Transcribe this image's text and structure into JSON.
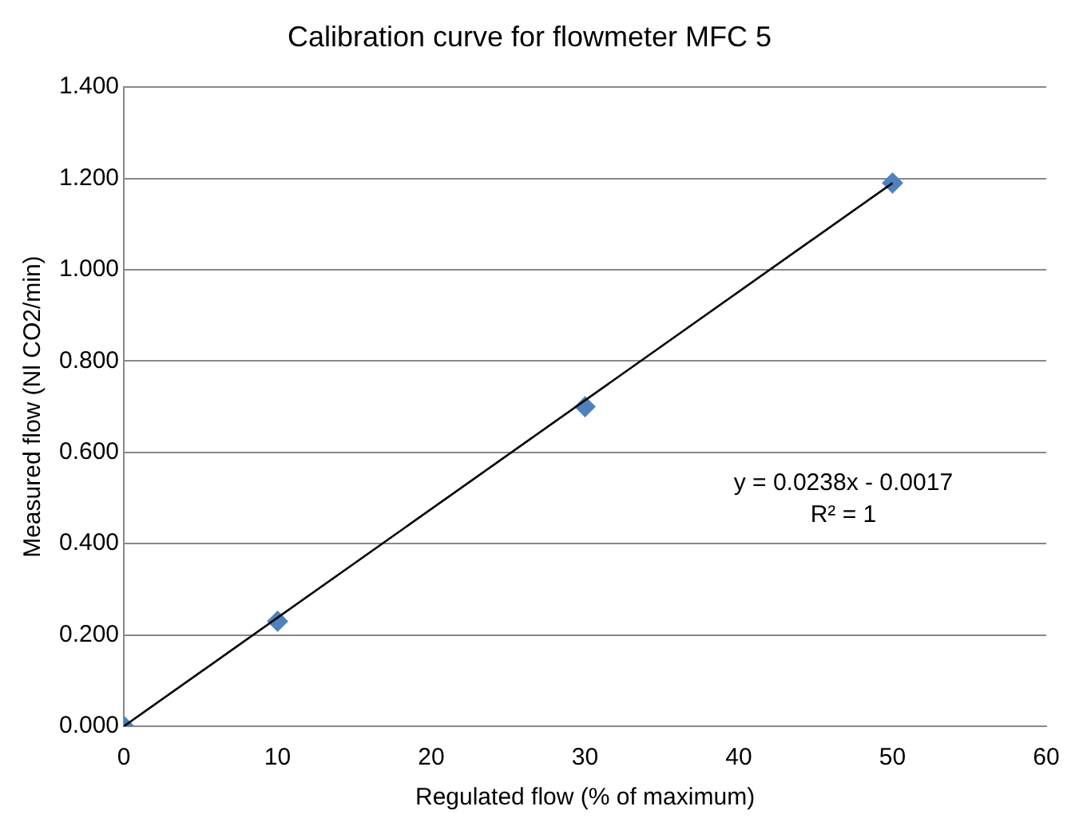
{
  "chart_data": {
    "type": "scatter",
    "title": "Calibration curve for flowmeter MFC 5",
    "xlabel": "Regulated flow (% of maximum)",
    "ylabel": "Measured flow (Nl CO2/min)",
    "x": [
      0,
      10,
      30,
      50
    ],
    "series": [
      {
        "type": "scatter",
        "color": "#4f81bd",
        "values": [
          0,
          0.23,
          0.7,
          1.19
        ],
        "marker": "diamond"
      },
      {
        "type": "line",
        "color": "#000000",
        "x": [
          0,
          50
        ],
        "values": [
          0,
          1.19
        ],
        "marker": "none"
      }
    ],
    "xlim": [
      0,
      60
    ],
    "xticks": [
      0,
      10,
      20,
      30,
      40,
      50,
      60
    ],
    "ylim": [
      0,
      1.4
    ],
    "yticks": [
      {
        "value": 0,
        "label": "0.000"
      },
      {
        "value": 0.2,
        "label": "0.200"
      },
      {
        "value": 0.4,
        "label": "0.400"
      },
      {
        "value": 0.6,
        "label": "0.600"
      },
      {
        "value": 0.8,
        "label": "0.800"
      },
      {
        "value": 1,
        "label": "1.000"
      },
      {
        "value": 1.2,
        "label": "1.200"
      },
      {
        "value": 1.4,
        "label": "1.400"
      }
    ],
    "grid": "y",
    "legend": false,
    "annotations": [
      "y = 0.0238x - 0.0017",
      "R² = 1"
    ]
  }
}
